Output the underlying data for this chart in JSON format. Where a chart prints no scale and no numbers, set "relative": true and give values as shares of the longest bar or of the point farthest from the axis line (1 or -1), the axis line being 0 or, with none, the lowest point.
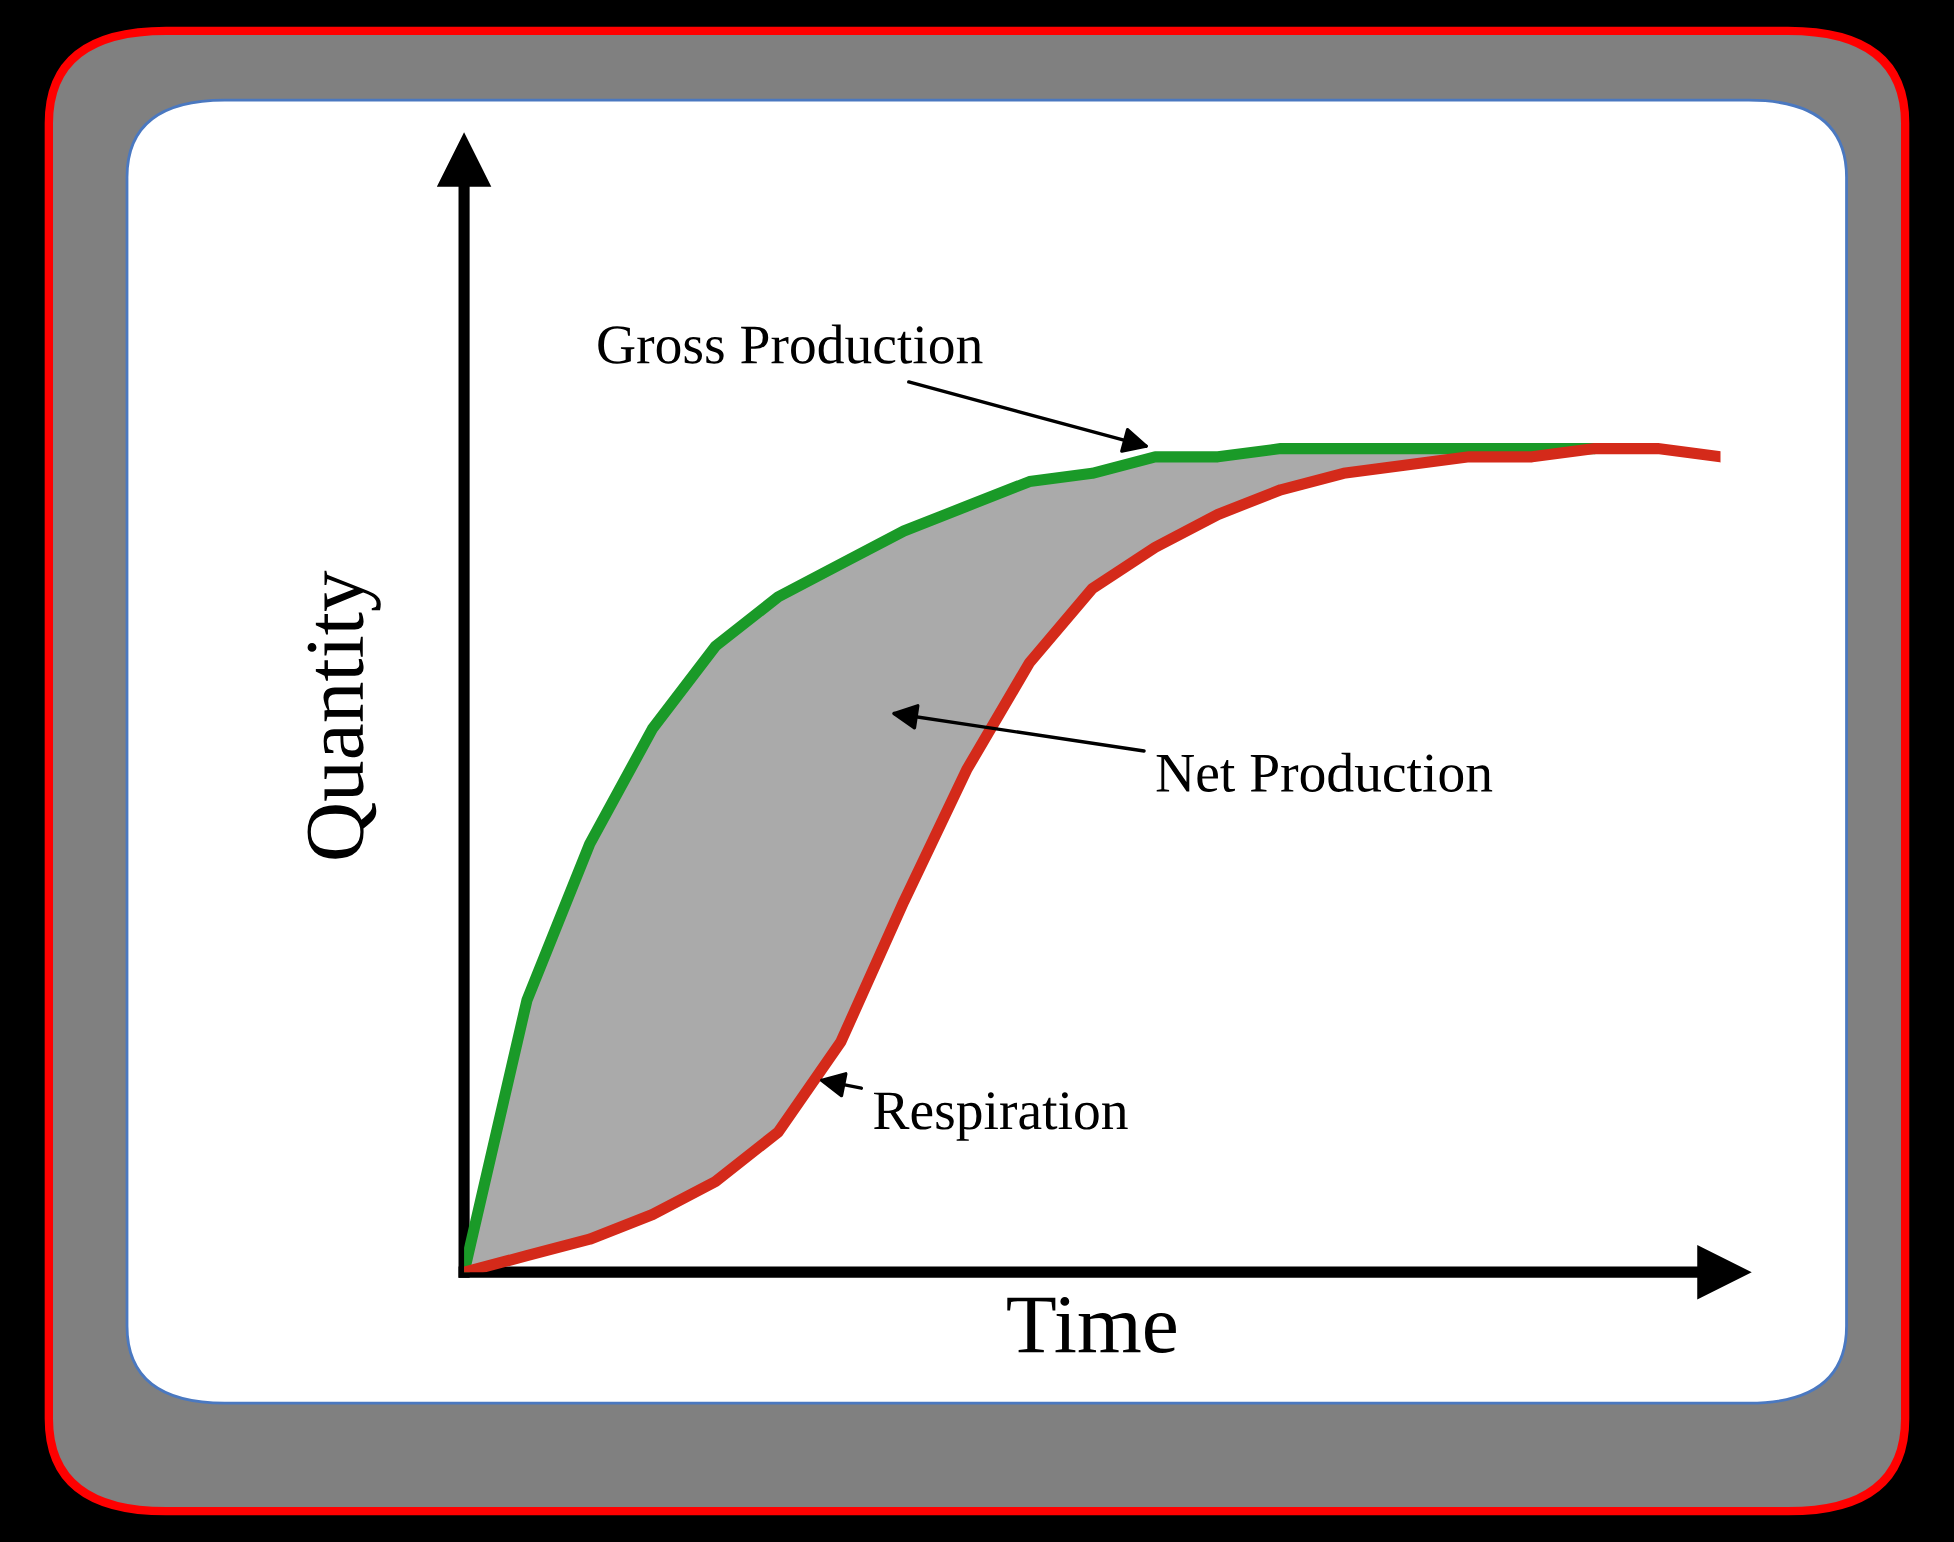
{
  "chart_data": {
    "type": "line",
    "relative": true,
    "xlabel": "Time",
    "ylabel": "Quantity",
    "tick_labels": false,
    "annotations": [
      "Net Production"
    ],
    "categories": [
      null,
      null,
      null,
      null,
      null,
      null,
      null,
      null,
      null,
      null,
      null,
      null,
      null,
      null,
      null,
      null,
      null,
      null,
      null,
      null,
      null
    ],
    "series": [
      {
        "name": "Gross Production",
        "color": "#1a9a28",
        "values": [
          0,
          0.33,
          0.52,
          0.66,
          0.76,
          0.82,
          0.86,
          0.9,
          0.93,
          0.96,
          0.97,
          0.99,
          0.99,
          1.0,
          1.0,
          1.0,
          1.0,
          1.0,
          1.0,
          null,
          null
        ],
        "lower": [
          0,
          0.02,
          0.04,
          0.07,
          0.11,
          0.17,
          0.28,
          0.45,
          0.61,
          0.74,
          0.83,
          0.88,
          0.92,
          0.95,
          0.97,
          0.98,
          0.99,
          0.99,
          1.0,
          1.0,
          0.99
        ],
        "upper": [
          0,
          0.33,
          0.52,
          0.66,
          0.76,
          0.82,
          0.86,
          0.9,
          0.93,
          0.96,
          0.97,
          0.99,
          0.99,
          1.0,
          1.0,
          1.0,
          1.0,
          1.0,
          1.0,
          1.0,
          0.99
        ]
      },
      {
        "name": "Respiration",
        "color": "#d42a1a",
        "values": [
          0,
          0.02,
          0.04,
          0.07,
          0.11,
          0.17,
          0.28,
          0.45,
          0.61,
          0.74,
          0.83,
          0.88,
          0.92,
          0.95,
          0.97,
          0.98,
          0.99,
          0.99,
          1.0,
          1.0,
          0.99
        ]
      }
    ]
  }
}
